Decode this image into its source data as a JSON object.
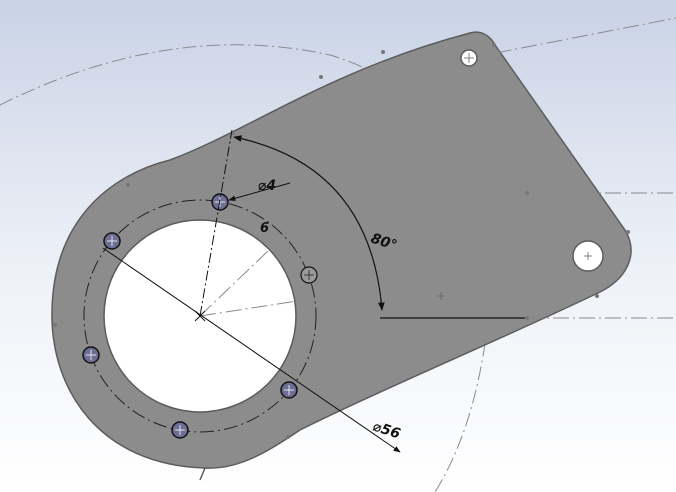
{
  "cad_view": {
    "dimensions": {
      "hole_diameter": "⌀4",
      "hole_count": "6",
      "angle": "80°",
      "bolt_circle_diameter": "⌀56"
    },
    "colors": {
      "part_fill": "#8c8c8c",
      "part_edge": "#5c5c5c",
      "bore_fill": "#ffffff",
      "background_top": "#c9d3e6",
      "background_bottom": "#ffffff",
      "selected_hole": "#6f6f95",
      "dimension_line": "#111111",
      "centerline": "#8a8a8a"
    }
  }
}
